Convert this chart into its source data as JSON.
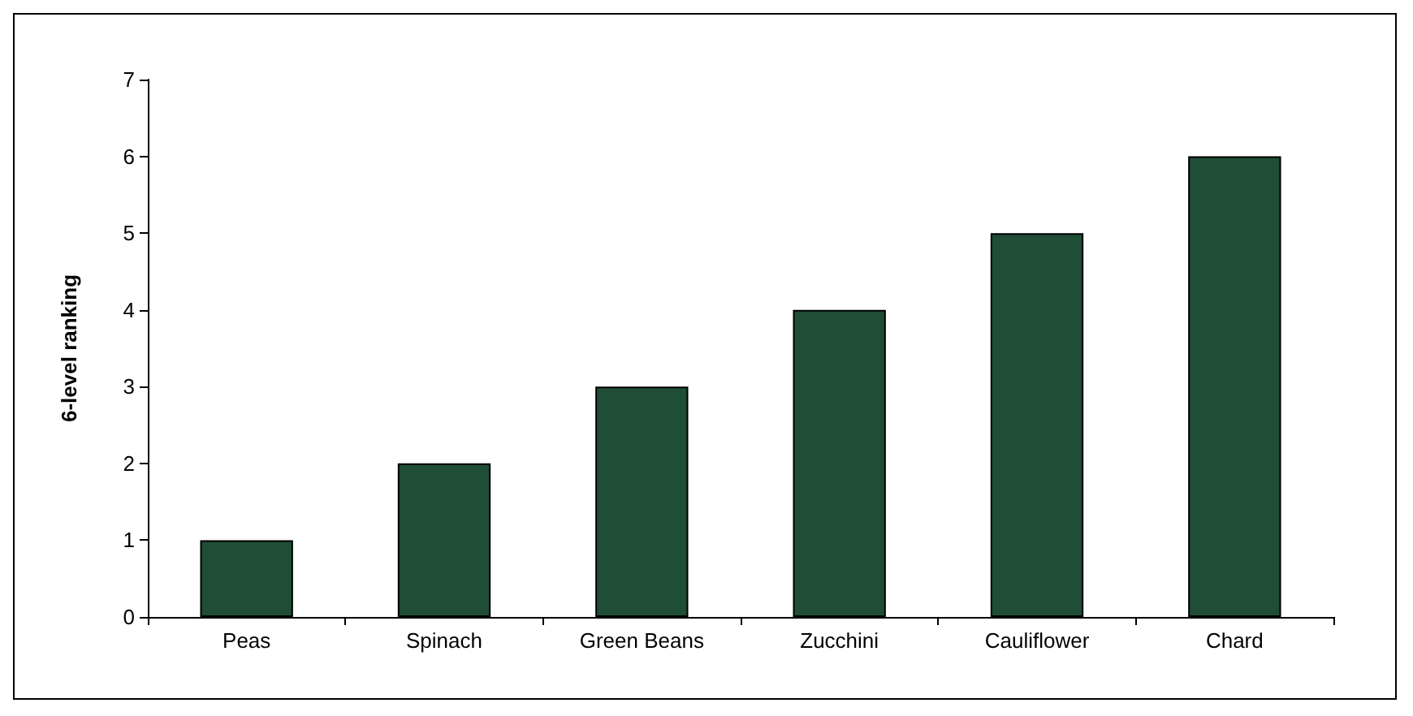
{
  "chart_data": {
    "type": "bar",
    "ylabel": "6-level ranking",
    "categories": [
      "Peas",
      "Spinach",
      "Green Beans",
      "Zucchini",
      "Cauliflower",
      "Chard"
    ],
    "values": [
      1,
      2,
      3,
      4,
      5,
      6
    ],
    "color": "#1f4d36",
    "ylim": [
      0,
      7
    ],
    "yticks": [
      0,
      1,
      2,
      3,
      4,
      5,
      6,
      7
    ],
    "grid": false
  }
}
